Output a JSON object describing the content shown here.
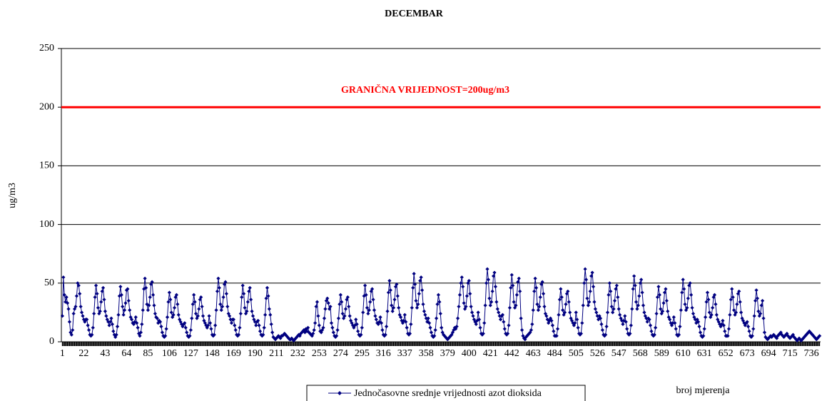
{
  "chart_data": {
    "type": "line",
    "title": "DECEMBAR",
    "ylabel": "ug/m3",
    "xlabel": "broj mjerenja",
    "ylim": [
      0,
      250
    ],
    "yticks": [
      0,
      50,
      100,
      150,
      200,
      250
    ],
    "grid": true,
    "xlim": [
      0,
      745
    ],
    "xticks": [
      1,
      22,
      43,
      64,
      85,
      106,
      127,
      148,
      169,
      190,
      211,
      232,
      253,
      274,
      295,
      316,
      337,
      358,
      379,
      400,
      421,
      442,
      463,
      484,
      505,
      526,
      547,
      568,
      589,
      610,
      631,
      652,
      673,
      694,
      715,
      736
    ],
    "threshold": {
      "value": 200,
      "label": "GRANIČNA VRIJEDNOST=200ug/m3",
      "color": "#ff0000"
    },
    "legend": "bottom",
    "x": [
      1,
      2,
      3,
      4,
      5,
      6,
      7,
      8,
      9,
      10,
      11,
      12,
      13,
      14,
      15,
      16,
      17,
      18,
      19,
      20,
      21,
      22,
      23,
      24,
      25,
      26,
      27,
      28,
      29,
      30,
      31,
      32,
      33,
      34,
      35,
      36,
      37,
      38,
      39,
      40,
      41,
      42,
      43,
      44,
      45,
      46,
      47,
      48,
      49,
      50,
      51,
      52,
      53,
      54,
      55,
      56,
      57,
      58,
      59,
      60,
      61,
      62,
      63,
      64,
      65,
      66,
      67,
      68,
      69,
      70,
      71,
      72,
      73,
      74,
      75,
      76,
      77,
      78,
      79,
      80,
      81,
      82,
      83,
      84,
      85,
      86,
      87,
      88,
      89,
      90,
      91,
      92,
      93,
      94,
      95,
      96,
      97,
      98,
      99,
      100,
      101,
      102,
      103,
      104,
      105,
      106,
      107,
      108,
      109,
      110,
      111,
      112,
      113,
      114,
      115,
      116,
      117,
      118,
      119,
      120,
      121,
      122,
      123,
      124,
      125,
      126,
      127,
      128,
      129,
      130,
      131,
      132,
      133,
      134,
      135,
      136,
      137,
      138,
      139,
      140,
      141,
      142,
      143,
      144,
      145,
      146,
      147,
      148,
      149,
      150,
      151,
      152,
      153,
      154,
      155,
      156,
      157,
      158,
      159,
      160,
      161,
      162,
      163,
      164,
      165,
      166,
      167,
      168,
      169,
      170,
      171,
      172,
      173,
      174,
      175,
      176,
      177,
      178,
      179,
      180,
      181,
      182,
      183,
      184,
      185,
      186,
      187,
      188,
      189,
      190,
      191,
      192,
      193,
      194,
      195,
      196,
      197,
      198,
      199,
      200,
      201,
      202,
      203,
      204,
      205,
      206,
      207,
      208,
      209,
      210,
      211,
      212,
      213,
      214,
      215,
      216,
      217,
      218,
      219,
      220,
      221,
      222,
      223,
      224,
      225,
      226,
      227,
      228,
      229,
      230,
      231,
      232,
      233,
      234,
      235,
      236,
      237,
      238,
      239,
      240,
      241,
      242,
      243,
      244,
      245,
      246,
      247,
      248,
      249,
      250,
      251,
      252,
      253,
      254,
      255,
      256,
      257,
      258,
      259,
      260,
      261,
      262,
      263,
      264,
      265,
      266,
      267,
      268,
      269,
      270,
      271,
      272,
      273,
      274,
      275,
      276,
      277,
      278,
      279,
      280,
      281,
      282,
      283,
      284,
      285,
      286,
      287,
      288,
      289,
      290,
      291,
      292,
      293,
      294,
      295,
      296,
      297,
      298,
      299,
      300,
      301,
      302,
      303,
      304,
      305,
      306,
      307,
      308,
      309,
      310,
      311,
      312,
      313,
      314,
      315,
      316,
      317,
      318,
      319,
      320,
      321,
      322,
      323,
      324,
      325,
      326,
      327,
      328,
      329,
      330,
      331,
      332,
      333,
      334,
      335,
      336,
      337,
      338,
      339,
      340,
      341,
      342,
      343,
      344,
      345,
      346,
      347,
      348,
      349,
      350,
      351,
      352,
      353,
      354,
      355,
      356,
      357,
      358,
      359,
      360,
      361,
      362,
      363,
      364,
      365,
      366,
      367,
      368,
      369,
      370,
      371,
      372,
      373,
      374,
      375,
      376,
      377,
      378,
      379,
      380,
      381,
      382,
      383,
      384,
      385,
      386,
      387,
      388,
      389,
      390,
      391,
      392,
      393,
      394,
      395,
      396,
      397,
      398,
      399,
      400,
      401,
      402,
      403,
      404,
      405,
      406,
      407,
      408,
      409,
      410,
      411,
      412,
      413,
      414,
      415,
      416,
      417,
      418,
      419,
      420,
      421,
      422,
      423,
      424,
      425,
      426,
      427,
      428,
      429,
      430,
      431,
      432,
      433,
      434,
      435,
      436,
      437,
      438,
      439,
      440,
      441,
      442,
      443,
      444,
      445,
      446,
      447,
      448,
      449,
      450,
      451,
      452,
      453,
      454,
      455,
      456,
      457,
      458,
      459,
      460,
      461,
      462,
      463,
      464,
      465,
      466,
      467,
      468,
      469,
      470,
      471,
      472,
      473,
      474,
      475,
      476,
      477,
      478,
      479,
      480,
      481,
      482,
      483,
      484,
      485,
      486,
      487,
      488,
      489,
      490,
      491,
      492,
      493,
      494,
      495,
      496,
      497,
      498,
      499,
      500,
      501,
      502,
      503,
      504,
      505,
      506,
      507,
      508,
      509,
      510,
      511,
      512,
      513,
      514,
      515,
      516,
      517,
      518,
      519,
      520,
      521,
      522,
      523,
      524,
      525,
      526,
      527,
      528,
      529,
      530,
      531,
      532,
      533,
      534,
      535,
      536,
      537,
      538,
      539,
      540,
      541,
      542,
      543,
      544,
      545,
      546,
      547,
      548,
      549,
      550,
      551,
      552,
      553,
      554,
      555,
      556,
      557,
      558,
      559,
      560,
      561,
      562,
      563,
      564,
      565,
      566,
      567,
      568,
      569,
      570,
      571,
      572,
      573,
      574,
      575,
      576,
      577,
      578,
      579,
      580,
      581,
      582,
      583,
      584,
      585,
      586,
      587,
      588,
      589,
      590,
      591,
      592,
      593,
      594,
      595,
      596,
      597,
      598,
      599,
      600,
      601,
      602,
      603,
      604,
      605,
      606,
      607,
      608,
      609,
      610,
      611,
      612,
      613,
      614,
      615,
      616,
      617,
      618,
      619,
      620,
      621,
      622,
      623,
      624,
      625,
      626,
      627,
      628,
      629,
      630,
      631,
      632,
      633,
      634,
      635,
      636,
      637,
      638,
      639,
      640,
      641,
      642,
      643,
      644,
      645,
      646,
      647,
      648,
      649,
      650,
      651,
      652,
      653,
      654,
      655,
      656,
      657,
      658,
      659,
      660,
      661,
      662,
      663,
      664,
      665,
      666,
      667,
      668,
      669,
      670,
      671,
      672,
      673,
      674,
      675,
      676,
      677,
      678,
      679,
      680,
      681,
      682,
      683,
      684,
      685,
      686,
      687,
      688,
      689,
      690,
      691,
      692,
      693,
      694,
      695,
      696,
      697,
      698,
      699,
      700,
      701,
      702,
      703,
      704,
      705,
      706,
      707,
      708,
      709,
      710,
      711,
      712,
      713,
      714,
      715,
      716,
      717,
      718,
      719,
      720,
      721,
      722,
      723,
      724,
      725,
      726,
      727,
      728,
      729,
      730,
      731,
      732,
      733,
      734,
      735,
      736,
      737,
      738,
      739,
      740,
      741,
      742,
      743,
      744
    ],
    "series": [
      {
        "name": "Jednočasovne srednje vrijednosti azot dioksida",
        "color": "#000080",
        "values": [
          22,
          55,
          40,
          34,
          38,
          33,
          28,
          17,
          8,
          6,
          10,
          24,
          28,
          30,
          39,
          50,
          48,
          41,
          30,
          25,
          22,
          19,
          17,
          19,
          19,
          14,
          10,
          6,
          5,
          6,
          12,
          24,
          38,
          48,
          41,
          29,
          24,
          26,
          34,
          43,
          46,
          36,
          26,
          22,
          19,
          17,
          14,
          17,
          20,
          15,
          9,
          6,
          4,
          6,
          13,
          23,
          39,
          47,
          40,
          30,
          23,
          27,
          33,
          44,
          45,
          35,
          27,
          21,
          19,
          16,
          15,
          17,
          21,
          16,
          12,
          7,
          5,
          8,
          15,
          27,
          45,
          54,
          46,
          32,
          27,
          31,
          38,
          49,
          51,
          40,
          31,
          24,
          21,
          20,
          16,
          18,
          17,
          13,
          8,
          5,
          4,
          5,
          11,
          21,
          34,
          42,
          36,
          25,
          21,
          23,
          29,
          38,
          40,
          32,
          23,
          19,
          17,
          15,
          13,
          15,
          16,
          12,
          8,
          5,
          4,
          5,
          10,
          20,
          32,
          40,
          34,
          24,
          20,
          22,
          28,
          36,
          38,
          30,
          22,
          18,
          16,
          14,
          12,
          14,
          22,
          16,
          11,
          6,
          5,
          6,
          14,
          27,
          43,
          54,
          46,
          32,
          27,
          30,
          38,
          49,
          51,
          41,
          30,
          24,
          22,
          19,
          16,
          19,
          19,
          14,
          10,
          6,
          5,
          6,
          12,
          24,
          38,
          48,
          41,
          29,
          24,
          26,
          34,
          43,
          46,
          36,
          26,
          22,
          19,
          17,
          14,
          17,
          18,
          14,
          9,
          6,
          5,
          6,
          12,
          23,
          37,
          46,
          39,
          28,
          23,
          15,
          8,
          4,
          3,
          2,
          3,
          4,
          5,
          4,
          3,
          5,
          5,
          6,
          7,
          6,
          5,
          4,
          3,
          2,
          2,
          3,
          2,
          1,
          2,
          3,
          4,
          5,
          6,
          5,
          7,
          8,
          9,
          10,
          8,
          11,
          9,
          12,
          8,
          7,
          6,
          5,
          7,
          10,
          16,
          30,
          34,
          22,
          14,
          9,
          8,
          10,
          12,
          20,
          28,
          35,
          37,
          33,
          28,
          30,
          16,
          12,
          8,
          5,
          4,
          5,
          10,
          20,
          32,
          40,
          34,
          24,
          20,
          22,
          28,
          36,
          38,
          30,
          22,
          18,
          16,
          14,
          12,
          14,
          19,
          15,
          9,
          6,
          5,
          6,
          12,
          25,
          39,
          48,
          40,
          29,
          24,
          27,
          34,
          43,
          45,
          36,
          27,
          22,
          19,
          16,
          15,
          17,
          21,
          16,
          10,
          6,
          5,
          6,
          13,
          26,
          42,
          52,
          44,
          31,
          26,
          29,
          36,
          47,
          49,
          39,
          29,
          23,
          21,
          18,
          16,
          18,
          23,
          17,
          12,
          7,
          6,
          7,
          15,
          29,
          46,
          58,
          49,
          35,
          29,
          32,
          41,
          52,
          55,
          44,
          32,
          26,
          23,
          20,
          17,
          20,
          16,
          12,
          8,
          5,
          4,
          5,
          10,
          20,
          32,
          40,
          34,
          24,
          12,
          8,
          6,
          5,
          4,
          3,
          2,
          3,
          4,
          5,
          6,
          8,
          10,
          12,
          11,
          13,
          20,
          30,
          40,
          50,
          55,
          47,
          33,
          28,
          30,
          39,
          50,
          52,
          41,
          30,
          25,
          22,
          19,
          17,
          15,
          18,
          25,
          19,
          12,
          7,
          6,
          7,
          16,
          31,
          50,
          62,
          53,
          37,
          31,
          34,
          43,
          56,
          59,
          47,
          34,
          28,
          25,
          22,
          19,
          22,
          23,
          17,
          11,
          7,
          6,
          7,
          14,
          29,
          46,
          57,
          48,
          34,
          29,
          31,
          40,
          51,
          54,
          43,
          20,
          10,
          5,
          3,
          2,
          4,
          5,
          6,
          7,
          8,
          10,
          15,
          27,
          43,
          54,
          46,
          32,
          27,
          30,
          38,
          49,
          51,
          41,
          30,
          24,
          22,
          19,
          16,
          18,
          20,
          18,
          14,
          9,
          5,
          5,
          5,
          11,
          23,
          36,
          45,
          38,
          27,
          23,
          25,
          32,
          41,
          43,
          34,
          25,
          20,
          18,
          16,
          14,
          16,
          25,
          19,
          12,
          7,
          6,
          7,
          16,
          31,
          50,
          62,
          53,
          37,
          31,
          34,
          43,
          56,
          59,
          47,
          34,
          28,
          25,
          22,
          19,
          22,
          20,
          15,
          10,
          6,
          5,
          6,
          13,
          25,
          40,
          50,
          43,
          30,
          25,
          28,
          35,
          45,
          48,
          38,
          28,
          23,
          20,
          18,
          15,
          18,
          22,
          17,
          11,
          7,
          6,
          7,
          14,
          28,
          45,
          56,
          48,
          34,
          28,
          31,
          39,
          50,
          53,
          42,
          31,
          25,
          22,
          20,
          17,
          20,
          19,
          14,
          9,
          6,
          5,
          6,
          12,
          24,
          38,
          47,
          40,
          28,
          24,
          26,
          33,
          42,
          45,
          35,
          26,
          21,
          19,
          16,
          14,
          16,
          21,
          16,
          11,
          6,
          5,
          6,
          13,
          27,
          42,
          53,
          45,
          32,
          27,
          29,
          37,
          48,
          50,
          40,
          29,
          24,
          21,
          19,
          16,
          19,
          17,
          13,
          8,
          5,
          4,
          5,
          11,
          21,
          34,
          42,
          36,
          25,
          21,
          23,
          29,
          38,
          40,
          32,
          23,
          19,
          17,
          15,
          13,
          15,
          18,
          14,
          9,
          5,
          5,
          5,
          11,
          23,
          36,
          45,
          38,
          27,
          23,
          25,
          32,
          41,
          43,
          34,
          25,
          20,
          18,
          16,
          14,
          16,
          17,
          13,
          9,
          5,
          4,
          5,
          11,
          22,
          35,
          44,
          37,
          26,
          22,
          24,
          31,
          35,
          20,
          8,
          4,
          3,
          2,
          3,
          4,
          5,
          4,
          5,
          6,
          5,
          4,
          3,
          5,
          6,
          7,
          8,
          6,
          5,
          4,
          5,
          6,
          7,
          5,
          4,
          3,
          4,
          5,
          6,
          4,
          3,
          2,
          1,
          2,
          3,
          2,
          1,
          2,
          3,
          4,
          5,
          6,
          7,
          8,
          9,
          8,
          7,
          6,
          5,
          4,
          3,
          2,
          3,
          4,
          5
        ]
      }
    ]
  }
}
